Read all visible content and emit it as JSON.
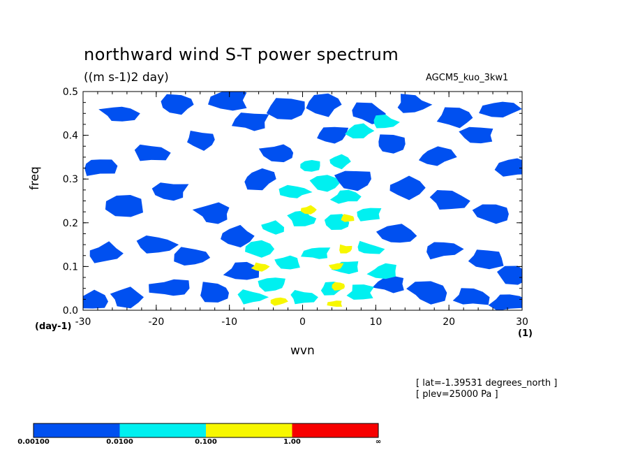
{
  "title": "northward wind S-T power spectrum",
  "subtitle": "((m s-1)2 day)",
  "run_name": "AGCM5_kuo_3kw1",
  "info": [
    "[ lat=-1.39531 degrees_north ]",
    "[ plev=25000 Pa ]"
  ],
  "colors": {
    "background": "#ffffff",
    "axis": "#000000",
    "levels": [
      "#0050f0",
      "#00f0f0",
      "#f7f700",
      "#f70000"
    ]
  },
  "chart_data": {
    "type": "heatmap",
    "title": "northward wind S-T power spectrum",
    "subtitle": "((m s-1)2 day)",
    "xlabel": "wvn",
    "x_unit": "(1)",
    "ylabel": "freq",
    "y_unit": "(day-1)",
    "xlim": [
      -30,
      30
    ],
    "ylim": [
      0,
      0.5
    ],
    "x_ticks": [
      -30,
      -20,
      -10,
      0,
      10,
      20,
      30
    ],
    "x_tick_labels": [
      "-30",
      "-20",
      "-10",
      "0",
      "10",
      "20",
      "30"
    ],
    "y_ticks": [
      0,
      0.1,
      0.2,
      0.3,
      0.4,
      0.5
    ],
    "y_tick_labels": [
      "0.0",
      "0.1",
      "0.2",
      "0.3",
      "0.4",
      "0.5"
    ],
    "colorbar": {
      "boundaries": [
        "0.00100",
        "0.0100",
        "0.100",
        "1.00",
        "∞"
      ],
      "colors": [
        "#0050f0",
        "#00f0f0",
        "#f7f700",
        "#f70000"
      ]
    },
    "blue_patches": [
      {
        "x": -29,
        "y": 0.02
      },
      {
        "x": -24,
        "y": 0.03
      },
      {
        "x": -18,
        "y": 0.05
      },
      {
        "x": -12,
        "y": 0.04
      },
      {
        "x": -27,
        "y": 0.13
      },
      {
        "x": -20,
        "y": 0.15
      },
      {
        "x": -15,
        "y": 0.12
      },
      {
        "x": -9,
        "y": 0.17
      },
      {
        "x": -24,
        "y": 0.24
      },
      {
        "x": -18,
        "y": 0.27
      },
      {
        "x": -12,
        "y": 0.22
      },
      {
        "x": -6,
        "y": 0.3
      },
      {
        "x": -28,
        "y": 0.33
      },
      {
        "x": -21,
        "y": 0.36
      },
      {
        "x": -14,
        "y": 0.39
      },
      {
        "x": -7,
        "y": 0.43
      },
      {
        "x": -25,
        "y": 0.45
      },
      {
        "x": -17,
        "y": 0.47
      },
      {
        "x": -10,
        "y": 0.48
      },
      {
        "x": -2,
        "y": 0.46
      },
      {
        "x": 3,
        "y": 0.47
      },
      {
        "x": 9,
        "y": 0.45
      },
      {
        "x": 15,
        "y": 0.47
      },
      {
        "x": 21,
        "y": 0.44
      },
      {
        "x": 27,
        "y": 0.46
      },
      {
        "x": 12,
        "y": 0.38
      },
      {
        "x": 18,
        "y": 0.35
      },
      {
        "x": 24,
        "y": 0.4
      },
      {
        "x": 29,
        "y": 0.33
      },
      {
        "x": 14,
        "y": 0.28
      },
      {
        "x": 20,
        "y": 0.25
      },
      {
        "x": 26,
        "y": 0.22
      },
      {
        "x": 13,
        "y": 0.17
      },
      {
        "x": 19,
        "y": 0.14
      },
      {
        "x": 25,
        "y": 0.12
      },
      {
        "x": 29,
        "y": 0.08
      },
      {
        "x": 12,
        "y": 0.06
      },
      {
        "x": 17,
        "y": 0.04
      },
      {
        "x": 23,
        "y": 0.03
      },
      {
        "x": 28,
        "y": 0.02
      },
      {
        "x": -3,
        "y": 0.36
      },
      {
        "x": 4,
        "y": 0.4
      },
      {
        "x": 7,
        "y": 0.3
      },
      {
        "x": -8,
        "y": 0.09
      }
    ],
    "cyan_patches": [
      {
        "x": 0,
        "y": 0.03
      },
      {
        "x": 4,
        "y": 0.05
      },
      {
        "x": 8,
        "y": 0.04
      },
      {
        "x": -4,
        "y": 0.06
      },
      {
        "x": -2,
        "y": 0.11
      },
      {
        "x": 2,
        "y": 0.13
      },
      {
        "x": 6,
        "y": 0.1
      },
      {
        "x": 9,
        "y": 0.14
      },
      {
        "x": -4,
        "y": 0.19
      },
      {
        "x": 0,
        "y": 0.21
      },
      {
        "x": 5,
        "y": 0.2
      },
      {
        "x": 9,
        "y": 0.22
      },
      {
        "x": -1,
        "y": 0.27
      },
      {
        "x": 3,
        "y": 0.29
      },
      {
        "x": 6,
        "y": 0.26
      },
      {
        "x": 1,
        "y": 0.33
      },
      {
        "x": 5,
        "y": 0.34
      },
      {
        "x": 8,
        "y": 0.41
      },
      {
        "x": 11,
        "y": 0.43
      },
      {
        "x": -6,
        "y": 0.14
      },
      {
        "x": 11,
        "y": 0.09
      },
      {
        "x": -7,
        "y": 0.03
      }
    ],
    "yellow_patches": [
      {
        "x": -3.2,
        "y": 0.02
      },
      {
        "x": 4.5,
        "y": 0.015
      },
      {
        "x": 5.0,
        "y": 0.055
      },
      {
        "x": 4.6,
        "y": 0.1
      },
      {
        "x": 5.8,
        "y": 0.14
      },
      {
        "x": 6.3,
        "y": 0.21
      },
      {
        "x": 0.9,
        "y": 0.23
      },
      {
        "x": -5.8,
        "y": 0.1
      }
    ]
  }
}
